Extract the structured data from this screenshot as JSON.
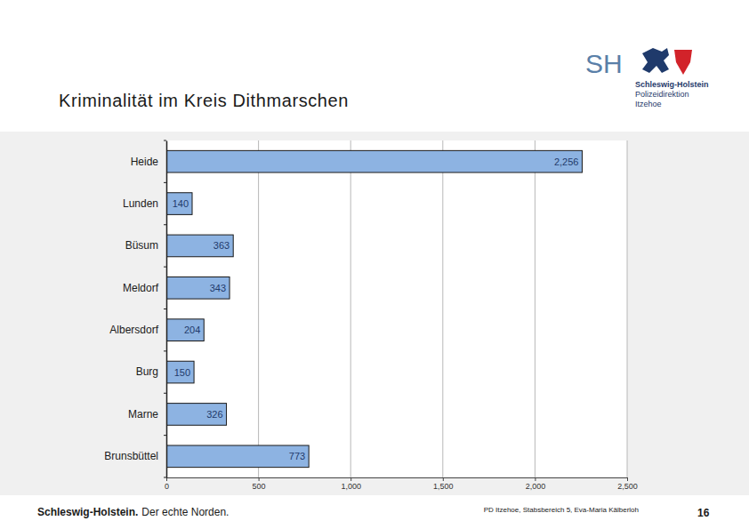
{
  "chart_data": {
    "type": "bar",
    "title": "Kriminalität im Kreis Dithmarschen",
    "orientation": "horizontal",
    "categories": [
      "Heide",
      "Lunden",
      "Büsum",
      "Meldorf",
      "Albersdorf",
      "Burg",
      "Marne",
      "Brunsbüttel"
    ],
    "values": [
      2256,
      140,
      363,
      343,
      204,
      150,
      326,
      773
    ],
    "value_labels": [
      "2,256",
      "140",
      "363",
      "343",
      "204",
      "150",
      "326",
      "773"
    ],
    "data_labels": true,
    "color": "#8db3e2",
    "xlim": [
      0,
      2500
    ],
    "xticks": [
      0,
      500,
      {
        "value": 1000,
        "label": "1,000"
      },
      {
        "value": 1500,
        "label": "1,500"
      },
      {
        "value": 2000,
        "label": "2,000"
      },
      {
        "value": 2500,
        "label": "2,500"
      }
    ],
    "grid": true
  },
  "page": {
    "logo": [
      "SH",
      "Schleswig-Holstein",
      "Polizeidirektion",
      "Itzehoe"
    ],
    "footer_left": [
      "Schleswig-Holstein.",
      "Der echte Norden."
    ],
    "footer_right": "PD Itzehoe, Stabsbereich 5, Eva-Maria Kälberloh",
    "page_number": 16
  }
}
